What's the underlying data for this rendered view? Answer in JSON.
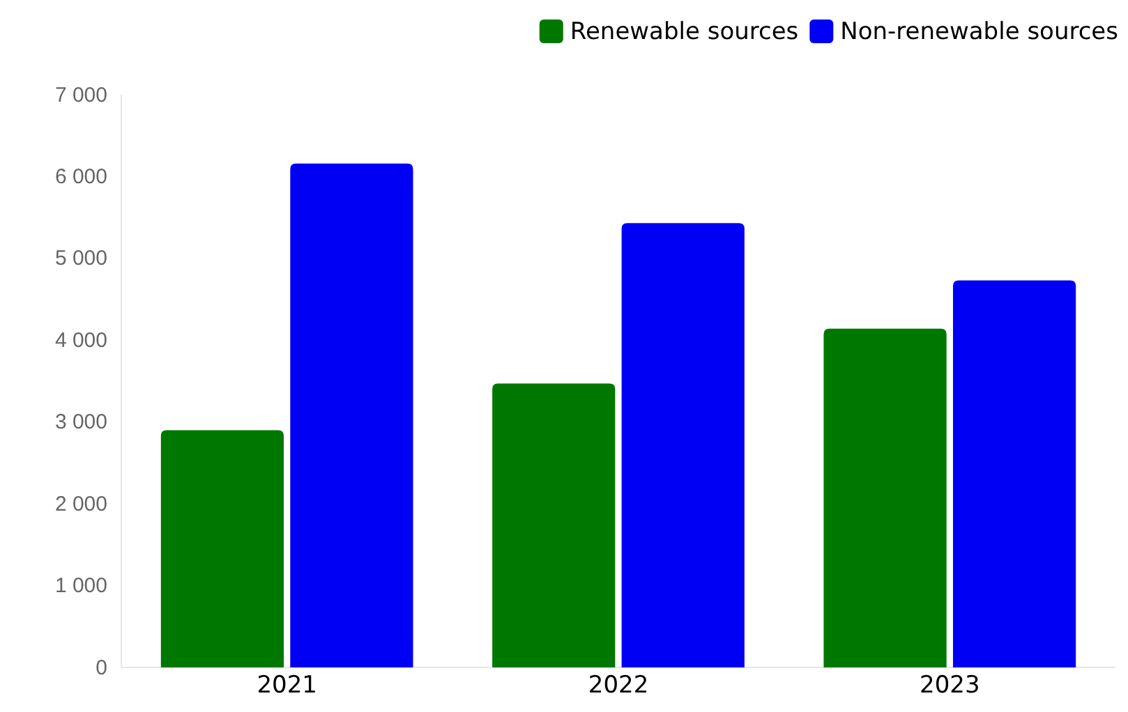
{
  "chart_data": {
    "type": "bar",
    "categories": [
      "2021",
      "2022",
      "2023"
    ],
    "series": [
      {
        "name": "Renewable sources",
        "color": "#007800",
        "values": [
          2900,
          3470,
          4140
        ]
      },
      {
        "name": "Non-renewable sources",
        "color": "#0000f5",
        "values": [
          6160,
          5430,
          4730
        ]
      }
    ],
    "ylim": [
      0,
      7000
    ],
    "yticks": [
      {
        "value": 0,
        "label": "0"
      },
      {
        "value": 1000,
        "label": "1 000"
      },
      {
        "value": 2000,
        "label": "2 000"
      },
      {
        "value": 3000,
        "label": "3 000"
      },
      {
        "value": 4000,
        "label": "4 000"
      },
      {
        "value": 5000,
        "label": "5 000"
      },
      {
        "value": 6000,
        "label": "6 000"
      },
      {
        "value": 7000,
        "label": "7 000"
      }
    ],
    "grid": false,
    "legend": "top right"
  }
}
